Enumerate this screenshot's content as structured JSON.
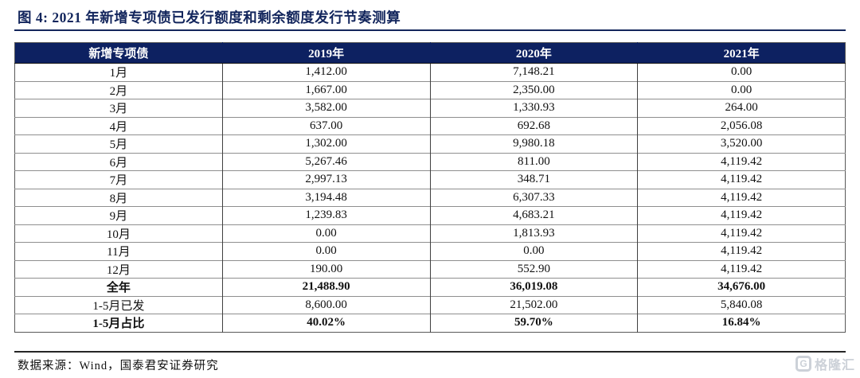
{
  "title": "图 4:  2021 年新增专项债已发行额度和剩余额度发行节奏测算",
  "table": {
    "columns": [
      "新增专项债",
      "2019年",
      "2020年",
      "2021年"
    ],
    "rows": [
      {
        "label": "1月",
        "values": [
          "1,412.00",
          "7,148.21",
          "0.00"
        ],
        "bold": false
      },
      {
        "label": "2月",
        "values": [
          "1,667.00",
          "2,350.00",
          "0.00"
        ],
        "bold": false
      },
      {
        "label": "3月",
        "values": [
          "3,582.00",
          "1,330.93",
          "264.00"
        ],
        "bold": false
      },
      {
        "label": "4月",
        "values": [
          "637.00",
          "692.68",
          "2,056.08"
        ],
        "bold": false
      },
      {
        "label": "5月",
        "values": [
          "1,302.00",
          "9,980.18",
          "3,520.00"
        ],
        "bold": false
      },
      {
        "label": "6月",
        "values": [
          "5,267.46",
          "811.00",
          "4,119.42"
        ],
        "bold": false
      },
      {
        "label": "7月",
        "values": [
          "2,997.13",
          "348.71",
          "4,119.42"
        ],
        "bold": false
      },
      {
        "label": "8月",
        "values": [
          "3,194.48",
          "6,307.33",
          "4,119.42"
        ],
        "bold": false
      },
      {
        "label": "9月",
        "values": [
          "1,239.83",
          "4,683.21",
          "4,119.42"
        ],
        "bold": false
      },
      {
        "label": "10月",
        "values": [
          "0.00",
          "1,813.93",
          "4,119.42"
        ],
        "bold": false
      },
      {
        "label": "11月",
        "values": [
          "0.00",
          "0.00",
          "4,119.42"
        ],
        "bold": false
      },
      {
        "label": "12月",
        "values": [
          "190.00",
          "552.90",
          "4,119.42"
        ],
        "bold": false
      },
      {
        "label": "全年",
        "values": [
          "21,488.90",
          "36,019.08",
          "34,676.00"
        ],
        "bold": true
      },
      {
        "label": "1-5月已发",
        "values": [
          "8,600.00",
          "21,502.00",
          "5,840.08"
        ],
        "bold": false
      },
      {
        "label": "1-5月占比",
        "values": [
          "40.02%",
          "59.70%",
          "16.84%"
        ],
        "bold": true
      }
    ]
  },
  "footer": {
    "source": "数据来源：Wind，国泰君安证券研究"
  },
  "watermark": {
    "icon": "G",
    "text": "格隆汇"
  },
  "colors": {
    "header_bg": "#0d2161",
    "header_text": "#ffffff",
    "title_color": "#12255c",
    "rule_color": "#14265c",
    "watermark_color": "#ccd1d8"
  }
}
